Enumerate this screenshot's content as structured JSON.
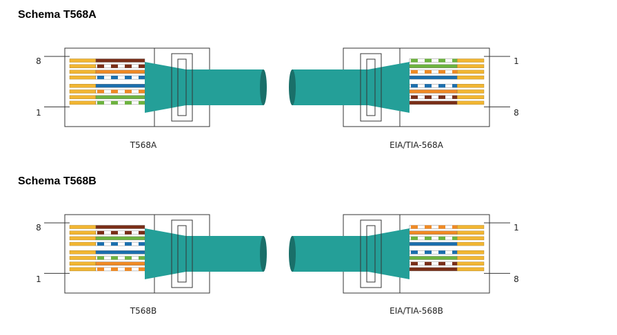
{
  "sections": [
    {
      "title": "Schema T568A",
      "left_caption": "T568A",
      "right_caption": "EIA/TIA-568A",
      "left_pins": [
        "8",
        "1"
      ],
      "right_pins": [
        "1",
        "8"
      ],
      "wires_pin1_to_8": [
        {
          "solid": "green",
          "stripe": true
        },
        {
          "solid": "green",
          "stripe": false
        },
        {
          "solid": "orange",
          "stripe": true
        },
        {
          "solid": "blue",
          "stripe": false
        },
        {
          "solid": "blue",
          "stripe": true
        },
        {
          "solid": "orange",
          "stripe": false
        },
        {
          "solid": "brown",
          "stripe": true
        },
        {
          "solid": "brown",
          "stripe": false
        }
      ]
    },
    {
      "title": "Schema T568B",
      "left_caption": "T568B",
      "right_caption": "EIA/TIA-568B",
      "left_pins": [
        "8",
        "1"
      ],
      "right_pins": [
        "1",
        "8"
      ],
      "wires_pin1_to_8": [
        {
          "solid": "orange",
          "stripe": true
        },
        {
          "solid": "orange",
          "stripe": false
        },
        {
          "solid": "green",
          "stripe": true
        },
        {
          "solid": "blue",
          "stripe": false
        },
        {
          "solid": "blue",
          "stripe": true
        },
        {
          "solid": "green",
          "stripe": false
        },
        {
          "solid": "brown",
          "stripe": true
        },
        {
          "solid": "brown",
          "stripe": false
        }
      ]
    }
  ],
  "colors": {
    "green": "#6db33f",
    "orange": "#f08a24",
    "blue": "#1b6fae",
    "brown": "#7a2e17",
    "gold_contact": "#f2b632",
    "cable": "#249f98",
    "cable_dark": "#1a6f69",
    "outline": "#333333"
  }
}
